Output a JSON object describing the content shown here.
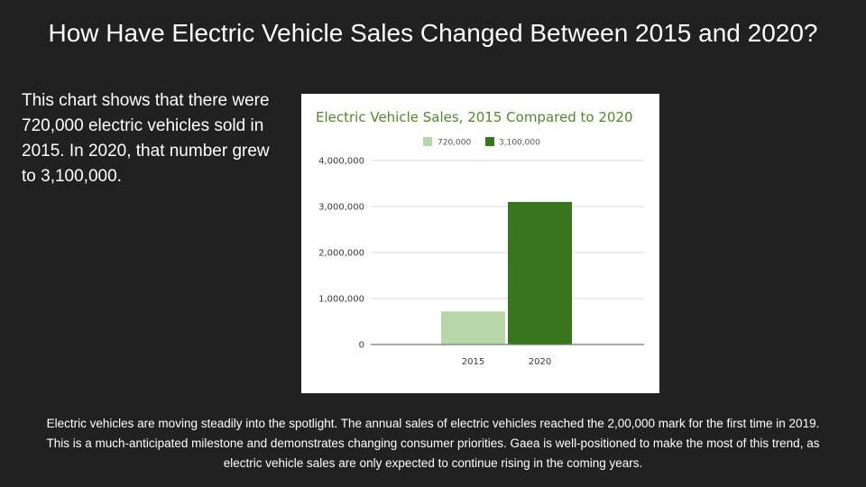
{
  "page": {
    "title": "How Have Electric Vehicle Sales Changed Between 2015 and 2020?",
    "intro": "This chart shows that there were 720,000 electric vehicles sold in 2015. In 2020, that number grew to 3,100,000.",
    "footer": "Electric vehicles are moving steadily into the spotlight. The annual sales of electric vehicles reached the 2,00,000 mark for the first time in 2019. This is a much-anticipated milestone and demonstrates changing consumer priorities. Gaea is well-positioned to make the most of this trend, as electric vehicle sales are only expected to continue rising in the coming years."
  },
  "chart_data": {
    "type": "bar",
    "title": "Electric Vehicle Sales, 2015 Compared to 2020",
    "categories": [
      "2015",
      "2020"
    ],
    "series": [
      {
        "name": "720,000",
        "color": "#b6d7a8",
        "values": [
          720000,
          null
        ]
      },
      {
        "name": "3,100,000",
        "color": "#38761d",
        "values": [
          null,
          3100000
        ]
      }
    ],
    "ylim": [
      0,
      4000000
    ],
    "yticks": [
      0,
      1000000,
      2000000,
      3000000,
      4000000
    ],
    "ytick_labels": [
      "0",
      "1,000,000",
      "2,000,000",
      "3,000,000",
      "4,000,000"
    ],
    "legend_position": "top-center",
    "grid": true,
    "xlabel": "",
    "ylabel": ""
  }
}
